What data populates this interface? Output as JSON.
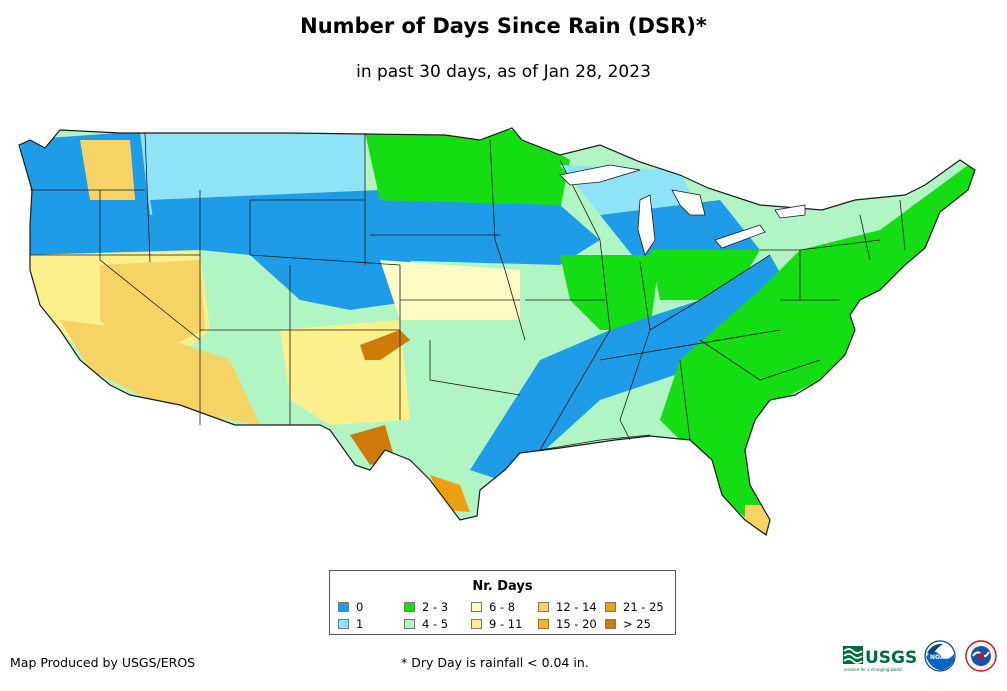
{
  "title": "Number of Days Since Rain (DSR)*",
  "subtitle": "in past 30 days, as of Jan 28, 2023",
  "legend": {
    "title": "Nr. Days",
    "items": [
      {
        "label": "0",
        "color": "#1f9ce8"
      },
      {
        "label": "1",
        "color": "#8fe3f6"
      },
      {
        "label": "2 - 3",
        "color": "#14dd14"
      },
      {
        "label": "4 - 5",
        "color": "#b2f5c4"
      },
      {
        "label": "6 - 8",
        "color": "#fffbc4"
      },
      {
        "label": "9 - 11",
        "color": "#fbf08c"
      },
      {
        "label": "12 - 14",
        "color": "#f5d465"
      },
      {
        "label": "15 - 20",
        "color": "#f2b81e"
      },
      {
        "label": "21 - 25",
        "color": "#eca010"
      },
      {
        "label": "> 25",
        "color": "#cf7a08"
      }
    ]
  },
  "credit": "Map Produced by USGS/EROS",
  "footnote": "* Dry Day is rainfall < 0.04 in.",
  "logos": {
    "usgs": "USGS",
    "usgs_tagline": "science for a changing world",
    "noaa": "NOAA",
    "nws": "National Weather Service"
  },
  "map": {
    "region": "Contiguous United States",
    "border_color": "#1a1a1a"
  }
}
